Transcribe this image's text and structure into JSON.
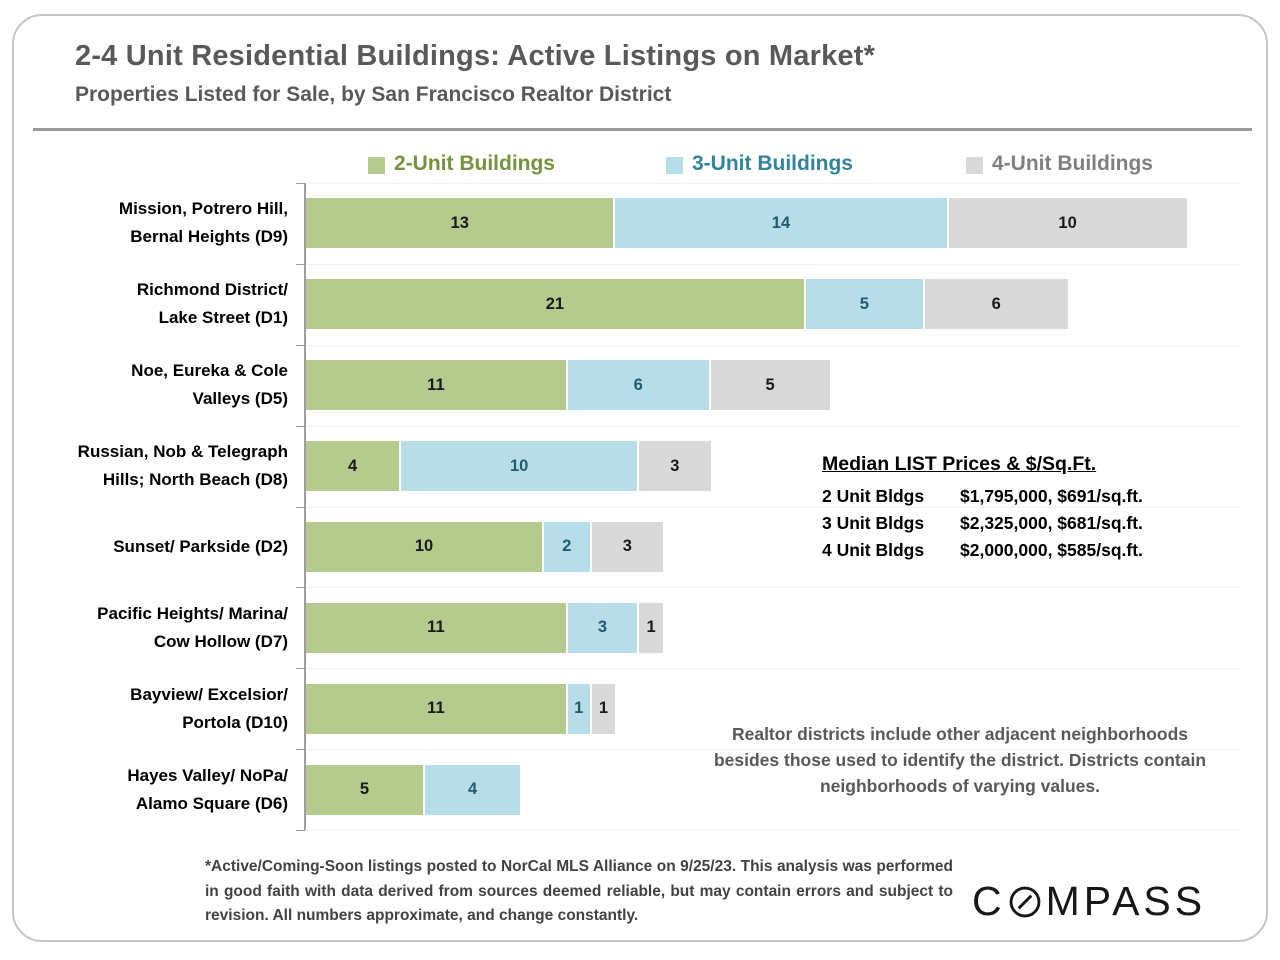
{
  "header": {
    "title": "2-4 Unit Residential Buildings:  Active Listings on Market*",
    "subtitle": "Properties Listed for Sale, by San Francisco Realtor District"
  },
  "legend": [
    {
      "label": "2-Unit Buildings",
      "swatch": "#b5cb8d",
      "text_color": "#76923c"
    },
    {
      "label": "3-Unit Buildings",
      "swatch": "#b7dde8",
      "text_color": "#31849b"
    },
    {
      "label": "4-Unit Buildings",
      "swatch": "#d9d9d9",
      "text_color": "#7f7f7f"
    }
  ],
  "chart_data": {
    "type": "bar",
    "orientation": "horizontal",
    "stacked": true,
    "grid": false,
    "legend_position": "top",
    "xlim": [
      0,
      39.5
    ],
    "categories": [
      "Mission, Potrero Hill,\nBernal Heights (D9)",
      "Richmond District/\nLake Street (D1)",
      "Noe, Eureka & Cole\nValleys (D5)",
      "Russian, Nob & Telegraph\nHills; North Beach (D8)",
      "Sunset/ Parkside (D2)",
      "Pacific Heights/ Marina/\nCow Hollow (D7)",
      "Bayview/ Excelsior/\nPortola (D10)",
      "Hayes Valley/ NoPa/\nAlamo Square (D6)"
    ],
    "series": [
      {
        "name": "2-Unit Buildings",
        "color": "#b5cb8d",
        "label_color": "#1a1a1a",
        "values": [
          13,
          21,
          11,
          4,
          10,
          11,
          11,
          5
        ]
      },
      {
        "name": "3-Unit Buildings",
        "color": "#b7dde8",
        "label_color": "#215c6e",
        "values": [
          14,
          5,
          6,
          10,
          2,
          3,
          1,
          4
        ]
      },
      {
        "name": "4-Unit Buildings",
        "color": "#d9d9d9",
        "label_color": "#1a1a1a",
        "values": [
          10,
          6,
          5,
          3,
          3,
          1,
          1,
          0
        ]
      }
    ],
    "title": "2-4 Unit Residential Buildings: Active Listings on Market*",
    "xlabel": "",
    "ylabel": ""
  },
  "median_prices": {
    "title": "Median LIST Prices & $/Sq.Ft.",
    "rows": [
      {
        "label": "2 Unit Bldgs",
        "value": "$1,795,000, $691/sq.ft."
      },
      {
        "label": "3 Unit Bldgs",
        "value": "$2,325,000, $681/sq.ft."
      },
      {
        "label": "4 Unit Bldgs",
        "value": "$2,000,000, $585/sq.ft."
      }
    ]
  },
  "district_note": "Realtor districts include other adjacent neighborhoods besides those used to identify the district. Districts contain neighborhoods of varying values.",
  "footnote": "*Active/Coming-Soon listings posted to NorCal MLS Alliance on 9/25/23. This analysis was performed in good faith with data derived from sources deemed reliable, but may contain errors and subject to revision. All numbers approximate, and change constantly.",
  "brand": {
    "left": "C",
    "right": "MPASS"
  }
}
